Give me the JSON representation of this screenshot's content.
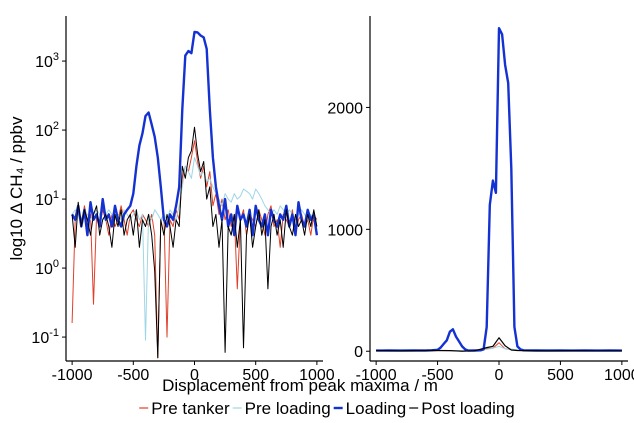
{
  "figure": {
    "xlabel": "Displacement from peak maxima / m",
    "legend": {
      "placement": "bottom",
      "entries": [
        {
          "name": "Pre tanker",
          "color": "#e0402a"
        },
        {
          "name": "Pre loading",
          "color": "#9fd6e6"
        },
        {
          "name": "Loading",
          "color": "#1432d2"
        },
        {
          "name": "Post loading",
          "color": "#000000"
        }
      ]
    }
  },
  "chart_data": [
    {
      "type": "line",
      "ylabel": "log10 Δ CH₄ / ppbv",
      "yscale": "log",
      "xlim": [
        -1050,
        1050
      ],
      "ylim": [
        0.045,
        4500
      ],
      "grid": false,
      "xticks": [
        -1000,
        -500,
        0,
        500,
        1000
      ],
      "xtick_labels": [
        "-1000",
        "-500",
        "0",
        "500",
        "1000"
      ],
      "yticks": [
        0.1,
        1,
        10,
        100,
        1000
      ],
      "ytick_labels": [
        {
          "base": "10",
          "exp": "-1"
        },
        {
          "base": "10",
          "exp": "0"
        },
        {
          "base": "10",
          "exp": "1"
        },
        {
          "base": "10",
          "exp": "2"
        },
        {
          "base": "10",
          "exp": "3"
        }
      ],
      "series": [
        {
          "name": "Pre tanker",
          "color": "#e0402a",
          "width": 1,
          "x": [
            -1000,
            -975,
            -950,
            -925,
            -900,
            -875,
            -850,
            -825,
            -800,
            -775,
            -750,
            -725,
            -700,
            -675,
            -650,
            -625,
            -600,
            -575,
            -550,
            -525,
            -500,
            -475,
            -450,
            -425,
            -400,
            -375,
            -350,
            -325,
            -300,
            -275,
            -250,
            -225,
            -200,
            -175,
            -150,
            -125,
            -100,
            -75,
            -50,
            -25,
            0,
            25,
            50,
            75,
            100,
            125,
            150,
            175,
            200,
            225,
            250,
            275,
            300,
            325,
            350,
            375,
            400,
            425,
            450,
            475,
            500,
            525,
            550,
            575,
            600,
            625,
            650,
            675,
            700,
            725,
            750,
            775,
            800,
            825,
            850,
            875,
            900,
            925,
            950,
            975,
            1000
          ],
          "y": [
            0.16,
            5,
            7,
            4,
            8,
            5,
            6,
            0.3,
            6,
            4,
            7,
            5,
            3,
            6,
            4,
            5,
            8,
            5,
            3,
            6,
            7,
            5,
            4,
            6,
            5,
            4,
            6,
            3,
            0.05,
            5,
            6,
            0.1,
            5,
            4,
            7,
            5,
            20,
            30,
            25,
            40,
            70,
            35,
            20,
            30,
            15,
            25,
            8,
            12,
            6,
            10,
            5,
            7,
            4,
            6,
            0.5,
            5,
            7,
            3,
            6,
            5,
            4,
            7,
            5,
            3,
            6,
            8,
            4,
            5,
            2,
            6,
            5,
            4,
            7,
            3,
            5,
            6,
            4,
            5,
            3,
            6,
            5
          ]
        },
        {
          "name": "Pre loading",
          "color": "#9fd6e6",
          "width": 1,
          "x": [
            -1000,
            -975,
            -950,
            -925,
            -900,
            -875,
            -850,
            -825,
            -800,
            -775,
            -750,
            -725,
            -700,
            -675,
            -650,
            -625,
            -600,
            -575,
            -550,
            -525,
            -500,
            -475,
            -450,
            -425,
            -400,
            -375,
            -350,
            -325,
            -300,
            -275,
            -250,
            -225,
            -200,
            -175,
            -150,
            -125,
            -100,
            -75,
            -50,
            -25,
            0,
            25,
            50,
            75,
            100,
            125,
            150,
            175,
            200,
            225,
            250,
            275,
            300,
            325,
            350,
            375,
            400,
            425,
            450,
            475,
            500,
            525,
            550,
            575,
            600,
            625,
            650,
            675,
            700,
            725,
            750,
            775,
            800,
            825,
            850,
            875,
            900,
            925,
            950,
            975,
            1000
          ],
          "y": [
            6,
            7,
            6,
            5,
            7,
            6,
            5,
            6,
            7,
            6,
            5,
            6,
            7,
            6,
            5,
            6,
            5,
            7,
            6,
            5,
            6,
            7,
            5,
            6,
            0.09,
            6,
            5,
            7,
            6,
            5,
            6,
            5,
            7,
            6,
            5,
            8,
            15,
            30,
            25,
            20,
            40,
            30,
            22,
            25,
            18,
            20,
            15,
            12,
            10,
            8,
            12,
            10,
            9,
            12,
            10,
            11,
            14,
            13,
            12,
            10,
            14,
            12,
            10,
            8,
            7,
            6,
            7,
            6,
            8,
            7,
            6,
            7,
            6,
            5,
            6,
            7,
            6,
            5,
            6,
            5,
            5
          ]
        },
        {
          "name": "Loading",
          "color": "#1432d2",
          "width": 2.4,
          "x": [
            -1000,
            -975,
            -950,
            -925,
            -900,
            -875,
            -850,
            -825,
            -800,
            -775,
            -750,
            -725,
            -700,
            -675,
            -650,
            -625,
            -600,
            -575,
            -550,
            -525,
            -500,
            -475,
            -450,
            -425,
            -400,
            -375,
            -350,
            -325,
            -300,
            -275,
            -250,
            -225,
            -200,
            -175,
            -150,
            -125,
            -100,
            -75,
            -50,
            -25,
            0,
            25,
            50,
            75,
            100,
            125,
            150,
            175,
            200,
            225,
            250,
            275,
            300,
            325,
            350,
            375,
            400,
            425,
            450,
            475,
            500,
            525,
            550,
            575,
            600,
            625,
            650,
            675,
            700,
            725,
            750,
            775,
            800,
            825,
            850,
            875,
            900,
            925,
            950,
            975,
            1000
          ],
          "y": [
            6,
            5,
            8,
            4,
            7,
            3,
            9,
            5,
            6,
            4,
            10,
            5,
            6,
            4,
            8,
            5,
            4,
            6,
            7,
            8,
            12,
            30,
            60,
            90,
            160,
            180,
            120,
            80,
            40,
            15,
            5,
            4,
            6,
            5,
            8,
            15,
            200,
            1200,
            1400,
            1300,
            2650,
            2600,
            2350,
            2200,
            1500,
            200,
            40,
            15,
            8,
            5,
            10,
            4,
            6,
            3,
            8,
            5,
            6,
            4,
            7,
            3,
            8,
            5,
            4,
            6,
            3,
            7,
            5,
            4,
            6,
            5,
            8,
            4,
            6,
            3,
            9,
            5,
            4,
            7,
            5,
            6,
            3
          ]
        },
        {
          "name": "Post loading",
          "color": "#000000",
          "width": 1,
          "x": [
            -1000,
            -975,
            -950,
            -925,
            -900,
            -875,
            -850,
            -825,
            -800,
            -775,
            -750,
            -725,
            -700,
            -675,
            -650,
            -625,
            -600,
            -575,
            -550,
            -525,
            -500,
            -475,
            -450,
            -425,
            -400,
            -375,
            -350,
            -325,
            -300,
            -275,
            -250,
            -225,
            -200,
            -175,
            -150,
            -125,
            -100,
            -75,
            -50,
            -25,
            0,
            25,
            50,
            75,
            100,
            125,
            150,
            175,
            200,
            225,
            250,
            275,
            300,
            325,
            350,
            375,
            400,
            425,
            450,
            475,
            500,
            525,
            550,
            575,
            600,
            625,
            650,
            675,
            700,
            725,
            750,
            775,
            800,
            825,
            850,
            875,
            900,
            925,
            950,
            975,
            1000
          ],
          "y": [
            6,
            2,
            9,
            4,
            7,
            5,
            3,
            6,
            8,
            3,
            5,
            6,
            4,
            2,
            6,
            4,
            7,
            3,
            5,
            6,
            3,
            7,
            2,
            5,
            4,
            6,
            3,
            0.9,
            0.05,
            5,
            3,
            6,
            4,
            2,
            5,
            4,
            30,
            20,
            40,
            50,
            110,
            45,
            25,
            35,
            10,
            15,
            4,
            6,
            2,
            5,
            0.06,
            4,
            3,
            6,
            2,
            5,
            0.07,
            3,
            6,
            2,
            4,
            7,
            3,
            5,
            0.5,
            4,
            6,
            3,
            5,
            2,
            7,
            4,
            3,
            6,
            4,
            5,
            3,
            6,
            4,
            7,
            4
          ]
        }
      ]
    },
    {
      "type": "line",
      "ylabel": "",
      "yscale": "linear",
      "xlim": [
        -1050,
        1050
      ],
      "ylim": [
        -80,
        2750
      ],
      "grid": false,
      "xticks": [
        -1000,
        -500,
        0,
        500,
        1000
      ],
      "xtick_labels": [
        "-1000",
        "-500",
        "0",
        "500",
        "1000"
      ],
      "yticks": [
        0,
        1000,
        2000
      ],
      "ytick_labels": [
        "0",
        "1000",
        "2000"
      ],
      "series": [
        {
          "name": "Pre tanker",
          "color": "#e0402a",
          "width": 1,
          "x": [
            -1000,
            -800,
            -600,
            -400,
            -300,
            -200,
            -100,
            -50,
            0,
            50,
            100,
            150,
            200,
            400,
            600,
            800,
            1000
          ],
          "y": [
            4,
            6,
            5,
            6,
            0,
            5,
            20,
            25,
            70,
            20,
            15,
            8,
            5,
            6,
            5,
            4,
            5
          ]
        },
        {
          "name": "Pre loading",
          "color": "#9fd6e6",
          "width": 1,
          "x": [
            -1000,
            -800,
            -600,
            -400,
            -200,
            -100,
            -50,
            0,
            50,
            100,
            150,
            200,
            400,
            600,
            800,
            1000
          ],
          "y": [
            6,
            6,
            6,
            6,
            6,
            15,
            25,
            40,
            22,
            18,
            12,
            10,
            12,
            7,
            6,
            5
          ]
        },
        {
          "name": "Loading",
          "color": "#1432d2",
          "width": 2.4,
          "x": [
            -1000,
            -900,
            -800,
            -700,
            -600,
            -550,
            -500,
            -475,
            -450,
            -425,
            -400,
            -375,
            -350,
            -325,
            -300,
            -275,
            -250,
            -200,
            -150,
            -125,
            -100,
            -75,
            -50,
            -25,
            0,
            25,
            50,
            75,
            100,
            125,
            150,
            175,
            200,
            300,
            400,
            500,
            600,
            700,
            800,
            900,
            1000
          ],
          "y": [
            5,
            6,
            5,
            6,
            5,
            8,
            12,
            30,
            60,
            90,
            160,
            180,
            120,
            80,
            40,
            15,
            5,
            6,
            8,
            15,
            200,
            1200,
            1400,
            1300,
            2650,
            2600,
            2350,
            2200,
            1500,
            200,
            40,
            15,
            8,
            6,
            5,
            6,
            5,
            6,
            5,
            6,
            5
          ]
        },
        {
          "name": "Post loading",
          "color": "#000000",
          "width": 1.2,
          "x": [
            -1000,
            -800,
            -600,
            -400,
            -300,
            -200,
            -100,
            -50,
            0,
            50,
            100,
            150,
            200,
            400,
            600,
            800,
            1000
          ],
          "y": [
            6,
            3,
            7,
            5,
            0,
            4,
            30,
            40,
            110,
            45,
            10,
            6,
            5,
            3,
            5,
            4,
            4
          ]
        }
      ]
    }
  ]
}
